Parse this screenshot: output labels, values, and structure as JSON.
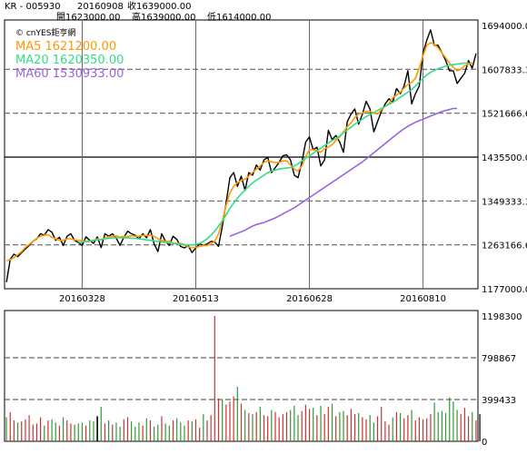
{
  "header": {
    "code": "KR - 005930",
    "date": "20160908",
    "close_label": "收1639000.00",
    "open_label": "開1623000.00",
    "high_label": "高1639000.00",
    "low_label": "低1614000.00"
  },
  "watermark": "© cnYES鉅亨網",
  "chart_data": [
    {
      "type": "line",
      "title": "",
      "legend_position": "top-left",
      "legend": [
        {
          "label": "MA5 1621200.00",
          "color": "#ff9900"
        },
        {
          "label": "MA20 1620350.00",
          "color": "#33dd88"
        },
        {
          "label": "MA60 1530933.00",
          "color": "#9966dd"
        }
      ],
      "ylim": [
        1177000,
        1694000
      ],
      "y_ticks": [
        1694000,
        1607833.3,
        1521666.6,
        1435500.0,
        1349333.3,
        1263166.6,
        1177000.0
      ],
      "y_tick_labels": [
        "1694000.00",
        "1607833.3",
        "1521666.6",
        "1435500.0",
        "1349333.3",
        "1263166.6",
        "1177000.0"
      ],
      "x_tick_labels": [
        {
          "index": 20,
          "label": "20160328"
        },
        {
          "index": 50,
          "label": "20160513"
        },
        {
          "index": 80,
          "label": "20160628"
        },
        {
          "index": 110,
          "label": "20160810"
        }
      ],
      "reference_line": 1435500,
      "series": [
        {
          "color": "#000000",
          "values": [
            1190000,
            1235000,
            1245000,
            1240000,
            1248000,
            1255000,
            1262000,
            1270000,
            1275000,
            1285000,
            1282000,
            1293000,
            1288000,
            1272000,
            1278000,
            1262000,
            1280000,
            1285000,
            1272000,
            1268000,
            1262000,
            1279000,
            1272000,
            1266000,
            1279000,
            1258000,
            1285000,
            1280000,
            1285000,
            1276000,
            1262000,
            1278000,
            1290000,
            1285000,
            1282000,
            1275000,
            1285000,
            1277000,
            1293000,
            1265000,
            1250000,
            1285000,
            1270000,
            1262000,
            1280000,
            1274000,
            1260000,
            1257000,
            1262000,
            1248000,
            1257000,
            1265000,
            1262000,
            1265000,
            1270000,
            1269000,
            1260000,
            1300000,
            1345000,
            1395000,
            1405000,
            1378000,
            1398000,
            1370000,
            1405000,
            1400000,
            1420000,
            1410000,
            1430000,
            1435000,
            1405000,
            1415000,
            1425000,
            1438000,
            1440000,
            1430000,
            1400000,
            1395000,
            1425000,
            1465000,
            1475000,
            1450000,
            1455000,
            1418000,
            1430000,
            1488000,
            1470000,
            1478000,
            1465000,
            1445000,
            1505000,
            1520000,
            1530000,
            1500000,
            1520000,
            1545000,
            1530000,
            1485000,
            1505000,
            1525000,
            1540000,
            1550000,
            1543000,
            1570000,
            1560000,
            1575000,
            1605000,
            1540000,
            1560000,
            1575000,
            1640000,
            1665000,
            1685000,
            1655000,
            1655000,
            1640000,
            1625000,
            1605000,
            1605000,
            1580000,
            1590000,
            1600000,
            1625000,
            1610000,
            1639000
          ]
        },
        {
          "color": "#ff9900",
          "values": [
            1232000,
            1234000,
            1238000,
            1244000,
            1250000,
            1258000,
            1264000,
            1270000,
            1276000,
            1280000,
            1282000,
            1283000,
            1278000,
            1275000,
            1272000,
            1272000,
            1275000,
            1275000,
            1273000,
            1272000,
            1272000,
            1269000,
            1270000,
            1272000,
            1275000,
            1273000,
            1277000,
            1279000,
            1280000,
            1281000,
            1278000,
            1280000,
            1279000,
            1281000,
            1280000,
            1280000,
            1282000,
            1281000,
            1282000,
            1280000,
            1275000,
            1272000,
            1270000,
            1270000,
            1267000,
            1266000,
            1266000,
            1264000,
            1259000,
            1258000,
            1258000,
            1260000,
            1262000,
            1262000,
            1265000,
            1270000,
            1285000,
            1310000,
            1340000,
            1365000,
            1378000,
            1385000,
            1390000,
            1392000,
            1398000,
            1405000,
            1412000,
            1418000,
            1425000,
            1428000,
            1426000,
            1425000,
            1425000,
            1428000,
            1428000,
            1420000,
            1412000,
            1408000,
            1418000,
            1436000,
            1450000,
            1450000,
            1448000,
            1445000,
            1452000,
            1455000,
            1460000,
            1468000,
            1475000,
            1485000,
            1495000,
            1503000,
            1513000,
            1520000,
            1522000,
            1525000,
            1525000,
            1522000,
            1520000,
            1528000,
            1535000,
            1541000,
            1552000,
            1557000,
            1563000,
            1571000,
            1578000,
            1582000,
            1590000,
            1610000,
            1635000,
            1655000,
            1660000,
            1657000,
            1650000,
            1640000,
            1630000,
            1620000,
            1612000,
            1605000,
            1608000,
            1615000,
            1618000,
            1621200
          ]
        },
        {
          "color": "#33dd88",
          "values": [
            null,
            null,
            null,
            null,
            null,
            null,
            null,
            null,
            null,
            null,
            null,
            null,
            null,
            null,
            null,
            null,
            null,
            null,
            null,
            1268000,
            1269000,
            1270000,
            1271000,
            1272000,
            1273000,
            1274000,
            1275000,
            1276000,
            1277000,
            1277000,
            1277000,
            1277000,
            1277000,
            1276000,
            1276000,
            1275000,
            1274000,
            1273000,
            1272000,
            1271000,
            1270000,
            1269000,
            1268000,
            1267000,
            1266000,
            1265000,
            1264000,
            1263000,
            1263000,
            1263000,
            1264000,
            1266000,
            1270000,
            1275000,
            1282000,
            1290000,
            1300000,
            1310000,
            1322000,
            1335000,
            1345000,
            1355000,
            1363000,
            1371000,
            1378000,
            1385000,
            1390000,
            1395000,
            1400000,
            1405000,
            1408000,
            1410000,
            1412000,
            1413000,
            1414000,
            1415000,
            1418000,
            1422000,
            1428000,
            1433000,
            1438000,
            1443000,
            1448000,
            1453000,
            1458000,
            1463000,
            1468000,
            1472000,
            1477000,
            1483000,
            1489000,
            1494000,
            1500000,
            1505000,
            1510000,
            1515000,
            1519000,
            1523000,
            1527000,
            1531000,
            1535000,
            1539000,
            1543000,
            1548000,
            1553000,
            1558000,
            1563000,
            1568000,
            1575000,
            1583000,
            1590000,
            1597000,
            1602000,
            1606000,
            1609000,
            1612000,
            1614000,
            1616000,
            1617000,
            1618000,
            1619000,
            1620000,
            1620350
          ]
        },
        {
          "color": "#9966dd",
          "values": [
            null,
            null,
            null,
            null,
            null,
            null,
            null,
            null,
            null,
            null,
            null,
            null,
            null,
            null,
            null,
            null,
            null,
            null,
            null,
            null,
            null,
            null,
            null,
            null,
            null,
            null,
            null,
            null,
            null,
            null,
            null,
            null,
            null,
            null,
            null,
            null,
            null,
            null,
            null,
            null,
            null,
            null,
            null,
            null,
            null,
            null,
            null,
            null,
            null,
            null,
            null,
            null,
            null,
            null,
            null,
            null,
            null,
            null,
            null,
            1280000,
            1283000,
            1286000,
            1289000,
            1292000,
            1296000,
            1300000,
            1303000,
            1305000,
            1307000,
            1310000,
            1313000,
            1316000,
            1320000,
            1324000,
            1328000,
            1332000,
            1336000,
            1341000,
            1346000,
            1351000,
            1356000,
            1361000,
            1366000,
            1371000,
            1376000,
            1381000,
            1386000,
            1391000,
            1396000,
            1401000,
            1406000,
            1411000,
            1416000,
            1421000,
            1426000,
            1432000,
            1438000,
            1444000,
            1450000,
            1456000,
            1462000,
            1468000,
            1474000,
            1480000,
            1486000,
            1491000,
            1496000,
            1500000,
            1504000,
            1507000,
            1510000,
            1513000,
            1516000,
            1519000,
            1522000,
            1525000,
            1527000,
            1529000,
            1531000,
            1530933
          ]
        }
      ]
    },
    {
      "type": "bar",
      "title": "",
      "ylim": [
        0,
        1198300
      ],
      "y_ticks": [
        1198300,
        798867,
        399433,
        0
      ],
      "y_tick_labels": [
        "1198300",
        "798867",
        "399433",
        "0"
      ],
      "colors": {
        "up": "#cc3333",
        "down": "#339933",
        "flat": "#000000"
      },
      "series": [
        {
          "name": "",
          "values": [
            230000,
            280000,
            200000,
            180000,
            190000,
            210000,
            250000,
            160000,
            170000,
            230000,
            150000,
            200000,
            210000,
            180000,
            150000,
            230000,
            200000,
            170000,
            160000,
            170000,
            180000,
            150000,
            200000,
            190000,
            240000,
            330000,
            170000,
            200000,
            160000,
            180000,
            140000,
            210000,
            230000,
            190000,
            140000,
            180000,
            150000,
            220000,
            200000,
            140000,
            160000,
            240000,
            170000,
            150000,
            200000,
            220000,
            180000,
            150000,
            200000,
            190000,
            210000,
            130000,
            260000,
            200000,
            250000,
            1198300,
            410000,
            400000,
            350000,
            380000,
            430000,
            520000,
            360000,
            300000,
            270000,
            260000,
            280000,
            330000,
            250000,
            240000,
            300000,
            280000,
            230000,
            260000,
            280000,
            300000,
            340000,
            250000,
            290000,
            350000,
            310000,
            320000,
            250000,
            340000,
            260000,
            330000,
            360000,
            240000,
            280000,
            290000,
            250000,
            310000,
            260000,
            270000,
            230000,
            210000,
            250000,
            180000,
            240000,
            330000,
            190000,
            160000,
            230000,
            280000,
            270000,
            220000,
            250000,
            300000,
            200000,
            230000,
            210000,
            220000,
            260000,
            370000,
            280000,
            290000,
            270000,
            420000,
            380000,
            300000,
            260000,
            320000,
            240000,
            280000,
            200000,
            260000
          ],
          "direction": [
            "down",
            "up",
            "up",
            "down",
            "up",
            "up",
            "up",
            "up",
            "up",
            "up",
            "down",
            "up",
            "down",
            "down",
            "up",
            "down",
            "up",
            "up",
            "down",
            "down",
            "down",
            "up",
            "down",
            "down",
            "flat",
            "down",
            "up",
            "down",
            "up",
            "down",
            "down",
            "up",
            "up",
            "down",
            "down",
            "down",
            "up",
            "down",
            "up",
            "down",
            "down",
            "up",
            "down",
            "down",
            "up",
            "down",
            "down",
            "down",
            "up",
            "down",
            "up",
            "up",
            "down",
            "up",
            "up",
            "up",
            "up",
            "down",
            "up",
            "up",
            "up",
            "down",
            "up",
            "down",
            "up",
            "down",
            "up",
            "down",
            "up",
            "up",
            "down",
            "up",
            "up",
            "up",
            "up",
            "down",
            "down",
            "down",
            "up",
            "up",
            "up",
            "down",
            "up",
            "down",
            "up",
            "up",
            "down",
            "up",
            "down",
            "down",
            "up",
            "up",
            "up",
            "down",
            "up",
            "up",
            "down",
            "down",
            "up",
            "up",
            "up",
            "up",
            "down",
            "up",
            "down",
            "up",
            "up",
            "down",
            "up",
            "up",
            "up",
            "up",
            "up",
            "down",
            "down",
            "down",
            "down",
            "down",
            "down",
            "down",
            "up",
            "up",
            "up",
            "down",
            "up"
          ]
        }
      ]
    }
  ]
}
